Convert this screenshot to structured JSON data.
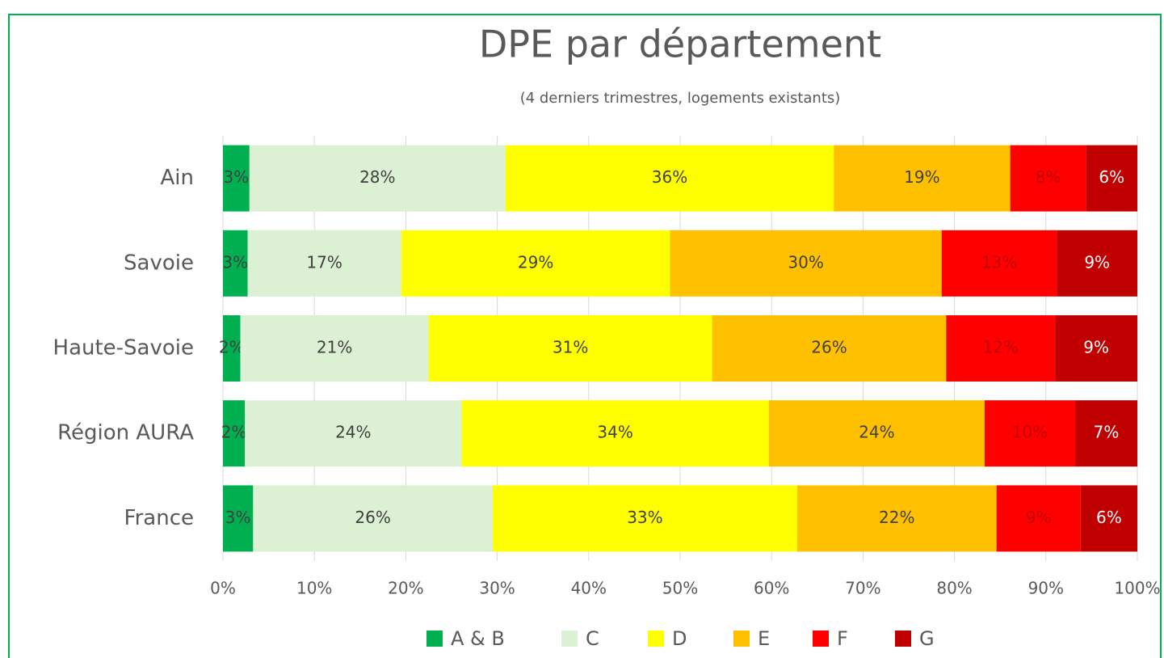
{
  "chart_data": {
    "type": "stacked_bar_horizontal",
    "title": "DPE par département",
    "subtitle": "(4 derniers trimestres, logements existants)",
    "categories": [
      "Ain",
      "Savoie",
      "Haute-Savoie",
      "Région AURA",
      "France"
    ],
    "series": [
      {
        "name": "A & B",
        "color": "#00b050",
        "label_color": "#404040",
        "values": [
          2.9,
          2.7,
          1.9,
          2.4,
          3.3
        ],
        "value_labels": [
          "3%",
          "3%",
          "2%",
          "2%",
          "3%"
        ]
      },
      {
        "name": "C",
        "color": "#dcf1d3",
        "label_color": "#404040",
        "values": [
          28.0,
          16.8,
          20.6,
          23.7,
          26.2
        ],
        "value_labels": [
          "28%",
          "17%",
          "21%",
          "24%",
          "26%"
        ]
      },
      {
        "name": "D",
        "color": "#ffff00",
        "label_color": "#404040",
        "values": [
          35.9,
          29.4,
          31.0,
          33.6,
          33.3
        ],
        "value_labels": [
          "36%",
          "29%",
          "31%",
          "34%",
          "33%"
        ]
      },
      {
        "name": "E",
        "color": "#ffc000",
        "label_color": "#404040",
        "values": [
          19.3,
          29.7,
          25.6,
          23.6,
          21.8
        ],
        "value_labels": [
          "19%",
          "30%",
          "26%",
          "24%",
          "22%"
        ]
      },
      {
        "name": "F",
        "color": "#ff0000",
        "label_color": "#c00000",
        "values": [
          8.3,
          12.6,
          11.9,
          9.9,
          9.2
        ],
        "value_labels": [
          "8%",
          "13%",
          "12%",
          "10%",
          "9%"
        ]
      },
      {
        "name": "G",
        "color": "#c00000",
        "label_color": "#ffffff",
        "values": [
          5.6,
          8.8,
          9.0,
          6.8,
          6.2
        ],
        "value_labels": [
          "6%",
          "9%",
          "9%",
          "7%",
          "6%"
        ]
      }
    ],
    "xlim": [
      0,
      100
    ],
    "xticks": [
      {
        "value": 0,
        "label": "0%"
      },
      {
        "value": 10,
        "label": "10%"
      },
      {
        "value": 20,
        "label": "20%"
      },
      {
        "value": 30,
        "label": "30%"
      },
      {
        "value": 40,
        "label": "40%"
      },
      {
        "value": 50,
        "label": "50%"
      },
      {
        "value": 60,
        "label": "60%"
      },
      {
        "value": 70,
        "label": "70%"
      },
      {
        "value": 80,
        "label": "80%"
      },
      {
        "value": 90,
        "label": "90%"
      },
      {
        "value": 100,
        "label": "100%"
      }
    ],
    "grid": true,
    "legend": "bottom"
  }
}
